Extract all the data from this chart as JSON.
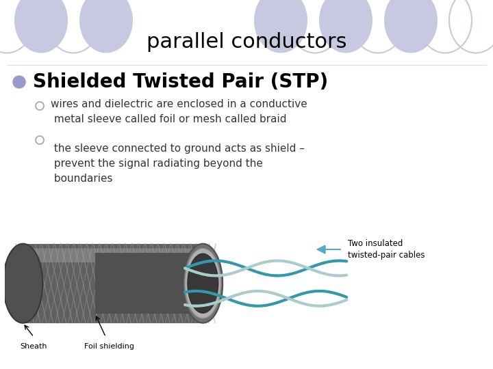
{
  "title": "parallel conductors",
  "title_fontsize": 22,
  "title_color": "#000000",
  "bg_color": "#ffffff",
  "bullet_main": "Shielded Twisted Pair (STP)",
  "bullet_main_fontsize": 20,
  "bullet_main_color": "#000000",
  "bullet_dot_color": "#9999cc",
  "sub_bullets": [
    "wires and dielectric are enclosed in a conductive\n metal sleeve called foil or mesh called braid",
    " the sleeve connected to ground acts as shield –\n prevent the signal radiating beyond the\n boundaries"
  ],
  "sub_bullet_fontsize": 11,
  "sub_bullet_color": "#333333",
  "sub_bullet_dot_color": "#aaaaaa",
  "header_ellipse_color": "#c8c8e0",
  "label_sheath": "Sheath",
  "label_foil": "Foil shielding",
  "label_twisted": "Two insulated\ntwisted-pair cables",
  "arrow_color": "#55aacc"
}
